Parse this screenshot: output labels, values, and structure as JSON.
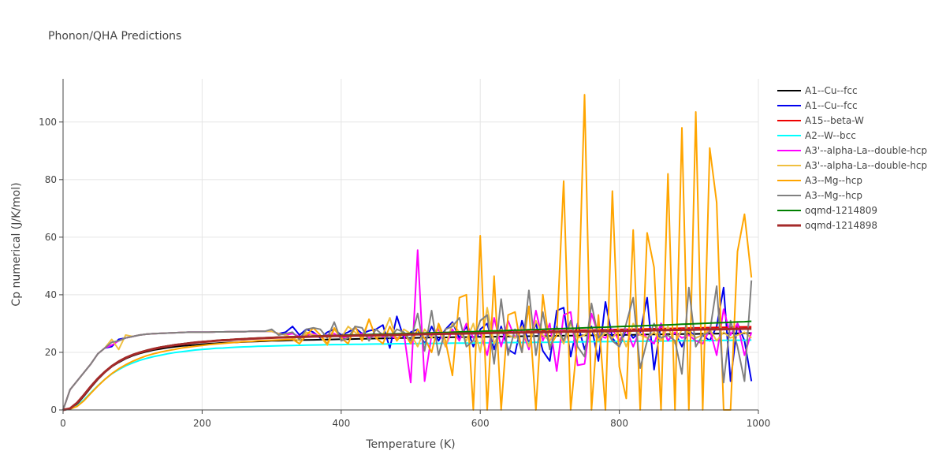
{
  "chart_data": {
    "type": "line",
    "title": "Phonon/QHA Predictions",
    "xlabel": "Temperature (K)",
    "ylabel": "Cp numerical (J/K/mol)",
    "xlim": [
      0,
      1000
    ],
    "ylim": [
      0,
      115
    ],
    "x_ticks": [
      0,
      200,
      400,
      600,
      800,
      1000
    ],
    "y_ticks": [
      0,
      20,
      40,
      60,
      80,
      100
    ],
    "grid": true,
    "legend_position": "right",
    "x": [
      0,
      10,
      20,
      30,
      40,
      50,
      60,
      70,
      80,
      90,
      100,
      110,
      120,
      130,
      140,
      150,
      160,
      170,
      180,
      190,
      200,
      210,
      220,
      230,
      240,
      250,
      260,
      270,
      280,
      290,
      300,
      310,
      320,
      330,
      340,
      350,
      360,
      370,
      380,
      390,
      400,
      410,
      420,
      430,
      440,
      450,
      460,
      470,
      480,
      490,
      500,
      510,
      520,
      530,
      540,
      550,
      560,
      570,
      580,
      590,
      600,
      610,
      620,
      630,
      640,
      650,
      660,
      670,
      680,
      690,
      700,
      710,
      720,
      730,
      740,
      750,
      760,
      770,
      780,
      790,
      800,
      810,
      820,
      830,
      840,
      850,
      860,
      870,
      880,
      890,
      900,
      910,
      920,
      930,
      940,
      950,
      960,
      970,
      980,
      990
    ],
    "series": [
      {
        "name": "A1--Cu--fcc",
        "color": "#000000",
        "width": 2,
        "values": [
          0,
          0.3,
          2.0,
          4.8,
          7.8,
          10.6,
          13.0,
          15.0,
          16.5,
          17.8,
          18.8,
          19.6,
          20.2,
          20.8,
          21.2,
          21.6,
          21.9,
          22.2,
          22.4,
          22.6,
          22.8,
          23.0,
          23.15,
          23.3,
          23.4,
          23.5,
          23.6,
          23.7,
          23.8,
          23.9,
          24.0,
          24.05,
          24.1,
          24.2,
          24.25,
          24.3,
          24.35,
          24.4,
          24.45,
          24.5,
          24.55,
          24.6,
          24.65,
          24.7,
          24.75,
          24.8,
          24.85,
          24.9,
          24.95,
          25.0,
          25.0,
          25.05,
          25.1,
          25.15,
          25.2,
          25.2,
          25.25,
          25.3,
          25.3,
          25.35,
          25.4,
          25.4,
          25.45,
          25.5,
          25.5,
          25.55,
          25.6,
          25.6,
          25.65,
          25.7,
          25.7,
          25.75,
          25.8,
          25.8,
          25.85,
          25.9,
          25.9,
          25.95,
          26.0,
          26.0,
          26.05,
          26.1,
          26.1,
          26.15,
          26.2,
          26.2,
          26.25,
          26.3,
          26.3,
          26.35,
          26.4,
          26.4,
          26.45,
          26.5,
          26.5,
          26.55,
          26.6,
          26.6,
          26.65,
          26.7
        ]
      },
      {
        "name": "A1--Cu--fcc",
        "color": "#0000ee",
        "width": 2,
        "values": [
          0,
          7.0,
          10.0,
          13.0,
          16.0,
          19.5,
          21.5,
          22.0,
          24.5,
          25.0,
          25.5,
          26.0,
          26.3,
          26.5,
          26.6,
          26.7,
          26.8,
          26.9,
          27.0,
          27.0,
          27.0,
          27.0,
          27.1,
          27.1,
          27.2,
          27.2,
          27.2,
          27.3,
          27.3,
          27.3,
          27.3,
          26.5,
          27.0,
          29.0,
          26.0,
          28.0,
          27.0,
          25.0,
          27.0,
          28.0,
          26.0,
          27.0,
          28.5,
          26.5,
          27.5,
          28.0,
          29.5,
          21.5,
          32.5,
          25.0,
          27.0,
          28.0,
          23.0,
          29.0,
          24.0,
          28.0,
          30.5,
          25.0,
          29.0,
          22.0,
          28.0,
          30.0,
          21.0,
          29.0,
          21.0,
          19.5,
          31.0,
          23.0,
          30.0,
          20.5,
          17.0,
          34.5,
          35.5,
          18.5,
          30.0,
          21.0,
          29.0,
          17.0,
          37.5,
          25.0,
          22.0,
          28.0,
          25.0,
          27.0,
          39.0,
          14.0,
          30.0,
          24.0,
          27.0,
          22.0,
          28.0,
          25.0,
          26.0,
          24.0,
          29.0,
          42.5,
          10.0,
          30.0,
          24.0,
          10.0
        ]
      },
      {
        "name": "A15--beta-W",
        "color": "#ee0000",
        "width": 2,
        "values": [
          0,
          0.5,
          2.5,
          5.3,
          8.3,
          11.0,
          13.3,
          15.3,
          16.9,
          18.2,
          19.2,
          20.0,
          20.7,
          21.3,
          21.8,
          22.2,
          22.6,
          22.9,
          23.2,
          23.5,
          23.7,
          23.9,
          24.1,
          24.3,
          24.4,
          24.6,
          24.7,
          24.85,
          24.95,
          25.05,
          25.15,
          25.25,
          25.35,
          25.4,
          25.5,
          25.55,
          25.65,
          25.7,
          25.8,
          25.85,
          25.9,
          26.0,
          26.05,
          26.1,
          26.15,
          26.2,
          26.25,
          26.3,
          26.35,
          26.4,
          26.45,
          26.5,
          26.55,
          26.6,
          26.65,
          26.7,
          26.75,
          26.8,
          26.85,
          26.9,
          26.95,
          27.0,
          27.05,
          27.1,
          27.15,
          27.2,
          27.25,
          27.3,
          27.35,
          27.4,
          27.45,
          27.5,
          27.55,
          27.6,
          27.65,
          27.7,
          27.75,
          27.8,
          27.85,
          27.9,
          27.95,
          28.0,
          28.05,
          28.1,
          28.15,
          28.2,
          28.25,
          28.3,
          28.35,
          28.4,
          28.45,
          28.5,
          28.55,
          28.6,
          28.65,
          28.7,
          28.75,
          28.8,
          28.85,
          28.9
        ]
      },
      {
        "name": "A2--W--bcc",
        "color": "#00ffff",
        "width": 2,
        "values": [
          0,
          0.2,
          1.4,
          3.5,
          6.0,
          8.4,
          10.6,
          12.5,
          14.0,
          15.3,
          16.3,
          17.2,
          17.9,
          18.5,
          19.0,
          19.5,
          19.9,
          20.2,
          20.5,
          20.8,
          21.0,
          21.2,
          21.4,
          21.5,
          21.65,
          21.8,
          21.9,
          22.0,
          22.1,
          22.15,
          22.2,
          22.3,
          22.35,
          22.4,
          22.45,
          22.5,
          22.55,
          22.6,
          22.65,
          22.7,
          22.7,
          22.75,
          22.8,
          22.8,
          22.85,
          22.9,
          22.9,
          22.95,
          23.0,
          23.0,
          23.0,
          23.05,
          23.1,
          23.1,
          23.1,
          23.15,
          23.2,
          23.2,
          23.2,
          23.25,
          23.3,
          23.3,
          23.3,
          23.35,
          23.4,
          23.4,
          23.4,
          23.45,
          23.5,
          23.5,
          23.5,
          23.55,
          23.6,
          23.6,
          23.6,
          23.65,
          23.7,
          23.7,
          23.7,
          23.75,
          23.8,
          23.8,
          23.8,
          23.85,
          23.9,
          23.9,
          23.9,
          23.95,
          24.0,
          24.0,
          24.0,
          24.05,
          24.1,
          24.1,
          24.1,
          24.15,
          24.2,
          24.2,
          24.2,
          24.25
        ]
      },
      {
        "name": "A3'--alpha-La--double-hcp",
        "color": "#ff00ff",
        "width": 2,
        "values": [
          0,
          7.0,
          10.0,
          13.0,
          16.0,
          19.5,
          21.5,
          22.5,
          24.0,
          25.0,
          25.5,
          26.0,
          26.3,
          26.5,
          26.6,
          26.7,
          26.8,
          26.9,
          27.0,
          27.0,
          27.0,
          27.0,
          27.1,
          27.1,
          27.2,
          27.2,
          27.2,
          27.3,
          27.3,
          27.3,
          27.3,
          26.5,
          26.0,
          26.5,
          25.5,
          26.0,
          26.5,
          25.5,
          26.0,
          26.5,
          25.0,
          25.5,
          26.0,
          26.5,
          25.0,
          26.0,
          25.5,
          26.0,
          24.5,
          27.0,
          9.5,
          55.5,
          10.0,
          26.0,
          28.0,
          22.0,
          28.0,
          24.0,
          30.0,
          25.0,
          27.0,
          19.0,
          32.0,
          22.0,
          31.0,
          25.0,
          28.0,
          21.0,
          34.5,
          24.0,
          30.0,
          13.5,
          33.0,
          34.0,
          15.5,
          16.0,
          33.5,
          26.0,
          25.0,
          28.0,
          24.0,
          28.0,
          22.0,
          28.0,
          25.0,
          23.0,
          30.0,
          24.0,
          27.0,
          25.0,
          26.0,
          24.0,
          23.0,
          28.0,
          19.0,
          35.0,
          26.0,
          30.0,
          19.0,
          27.0
        ]
      },
      {
        "name": "A3'--alpha-La--double-hcp",
        "color": "#f0c040",
        "width": 2,
        "values": [
          0,
          7.0,
          10.0,
          13.0,
          16.0,
          19.5,
          21.5,
          24.5,
          21.0,
          26.0,
          25.5,
          26.0,
          26.3,
          26.5,
          26.6,
          26.7,
          26.8,
          26.9,
          27.0,
          27.0,
          27.0,
          27.0,
          27.1,
          27.1,
          27.2,
          27.2,
          27.2,
          27.3,
          27.3,
          27.3,
          27.3,
          26.5,
          26.0,
          25.0,
          24.0,
          27.0,
          26.0,
          25.5,
          22.5,
          28.0,
          25.0,
          29.0,
          27.0,
          25.0,
          31.5,
          25.0,
          26.0,
          32.0,
          24.0,
          28.0,
          26.5,
          22.0,
          28.0,
          25.0,
          29.0,
          22.0,
          30.0,
          27.0,
          24.0,
          30.0,
          20.0,
          35.5,
          23.0,
          28.0,
          26.0,
          25.0,
          29.0,
          22.0,
          31.0,
          26.0,
          24.0,
          28.0,
          23.0,
          30.0,
          25.0,
          26.0,
          28.0,
          24.0,
          27.0,
          25.0,
          28.0,
          22.0,
          30.0,
          26.0,
          25.0,
          27.0,
          24.0,
          29.0,
          23.0,
          28.0,
          27.0,
          25.0,
          26.0,
          28.0,
          24.0,
          27.0,
          25.0,
          26.0,
          27.0,
          25.0
        ]
      },
      {
        "name": "A3--Mg--hcp",
        "color": "#ffa500",
        "width": 2,
        "values": [
          0,
          0.3,
          1.2,
          3.2,
          5.8,
          8.3,
          10.6,
          12.6,
          14.3,
          15.7,
          16.9,
          17.9,
          18.8,
          19.5,
          20.1,
          20.6,
          21.0,
          21.5,
          21.8,
          22.1,
          22.4,
          22.7,
          22.9,
          23.1,
          23.3,
          23.5,
          23.7,
          23.8,
          24.0,
          24.1,
          24.2,
          24.3,
          24.4,
          24.5,
          23.0,
          26.0,
          28.5,
          26.0,
          23.0,
          28.5,
          25.0,
          23.0,
          29.0,
          24.0,
          31.5,
          25.0,
          23.0,
          29.0,
          24.0,
          27.0,
          23.0,
          28.0,
          25.0,
          20.0,
          30.0,
          24.0,
          12.0,
          39.0,
          40.0,
          0,
          60.5,
          0,
          46.5,
          0,
          33.0,
          34.0,
          20.0,
          36.0,
          0,
          40.0,
          22.0,
          26.0,
          79.5,
          0,
          25.0,
          109.5,
          0,
          33.0,
          0,
          76.0,
          15.0,
          4.0,
          62.5,
          0,
          61.5,
          49.5,
          0,
          82.0,
          0,
          98.0,
          0,
          103.5,
          0,
          91.0,
          72.0,
          0,
          0,
          55.0,
          68.0,
          46.0
        ]
      },
      {
        "name": "A3--Mg--hcp",
        "color": "#808080",
        "width": 2,
        "values": [
          0,
          7.0,
          10.0,
          13.0,
          16.0,
          19.5,
          21.5,
          23.5,
          24.0,
          25.0,
          25.5,
          26.0,
          26.3,
          26.5,
          26.6,
          26.7,
          26.8,
          26.9,
          27.0,
          27.0,
          27.0,
          27.0,
          27.1,
          27.1,
          27.2,
          27.2,
          27.2,
          27.3,
          27.3,
          27.3,
          28.0,
          26.0,
          26.5,
          27.0,
          24.5,
          28.0,
          28.5,
          28.0,
          25.0,
          30.5,
          24.0,
          25.0,
          29.0,
          28.5,
          24.0,
          28.0,
          26.0,
          25.0,
          28.0,
          27.0,
          24.0,
          33.5,
          20.5,
          34.5,
          19.0,
          28.0,
          29.0,
          32.0,
          22.0,
          24.0,
          31.0,
          33.0,
          16.0,
          38.5,
          19.0,
          28.0,
          20.0,
          41.5,
          19.0,
          34.0,
          21.0,
          29.0,
          24.0,
          31.0,
          22.0,
          18.5,
          37.0,
          25.0,
          28.0,
          24.0,
          22.0,
          30.0,
          39.0,
          14.5,
          24.0,
          30.0,
          25.0,
          26.0,
          24.0,
          12.5,
          42.5,
          22.0,
          26.0,
          27.0,
          43.0,
          9.5,
          31.0,
          22.0,
          10.0,
          45.0
        ]
      },
      {
        "name": "oqmd-1214809",
        "color": "#008000",
        "width": 2,
        "values": [
          0,
          0.5,
          2.5,
          5.3,
          8.3,
          11.0,
          13.3,
          15.3,
          16.9,
          18.2,
          19.2,
          20.0,
          20.7,
          21.3,
          21.8,
          22.2,
          22.6,
          22.9,
          23.2,
          23.5,
          23.7,
          23.9,
          24.1,
          24.3,
          24.4,
          24.6,
          24.7,
          24.85,
          24.95,
          25.05,
          25.15,
          25.25,
          25.35,
          25.4,
          25.5,
          25.55,
          25.65,
          25.7,
          25.8,
          25.85,
          25.9,
          26.0,
          26.05,
          26.1,
          26.2,
          26.25,
          26.3,
          26.4,
          26.45,
          26.5,
          26.6,
          26.65,
          26.7,
          26.8,
          26.85,
          26.9,
          27.0,
          27.1,
          27.15,
          27.2,
          27.3,
          27.4,
          27.45,
          27.5,
          27.6,
          27.7,
          27.75,
          27.85,
          27.9,
          28.0,
          28.1,
          28.2,
          28.25,
          28.35,
          28.4,
          28.5,
          28.6,
          28.7,
          28.75,
          28.85,
          28.95,
          29.05,
          29.1,
          29.2,
          29.3,
          29.4,
          29.45,
          29.55,
          29.65,
          29.75,
          29.85,
          29.95,
          30.05,
          30.15,
          30.25,
          30.35,
          30.45,
          30.55,
          30.65,
          30.8
        ]
      },
      {
        "name": "oqmd-1214898",
        "color": "#a52a2a",
        "width": 3,
        "values": [
          0,
          0.5,
          2.4,
          5.2,
          8.2,
          10.9,
          13.2,
          15.2,
          16.8,
          18.1,
          19.1,
          19.9,
          20.6,
          21.2,
          21.7,
          22.1,
          22.5,
          22.8,
          23.1,
          23.4,
          23.6,
          23.8,
          24.0,
          24.2,
          24.3,
          24.5,
          24.6,
          24.75,
          24.85,
          24.95,
          25.05,
          25.15,
          25.2,
          25.3,
          25.35,
          25.4,
          25.5,
          25.55,
          25.6,
          25.65,
          25.7,
          25.75,
          25.8,
          25.85,
          25.9,
          25.95,
          26.0,
          26.05,
          26.1,
          26.15,
          26.2,
          26.25,
          26.3,
          26.35,
          26.4,
          26.45,
          26.5,
          26.5,
          26.55,
          26.6,
          26.65,
          26.7,
          26.75,
          26.8,
          26.8,
          26.85,
          26.9,
          26.95,
          27.0,
          27.0,
          27.05,
          27.1,
          27.15,
          27.2,
          27.2,
          27.25,
          27.3,
          27.35,
          27.4,
          27.4,
          27.45,
          27.5,
          27.55,
          27.6,
          27.6,
          27.65,
          27.7,
          27.75,
          27.8,
          27.8,
          27.85,
          27.9,
          27.95,
          28.0,
          28.0,
          28.05,
          28.1,
          28.15,
          28.2,
          28.2
        ]
      }
    ]
  }
}
